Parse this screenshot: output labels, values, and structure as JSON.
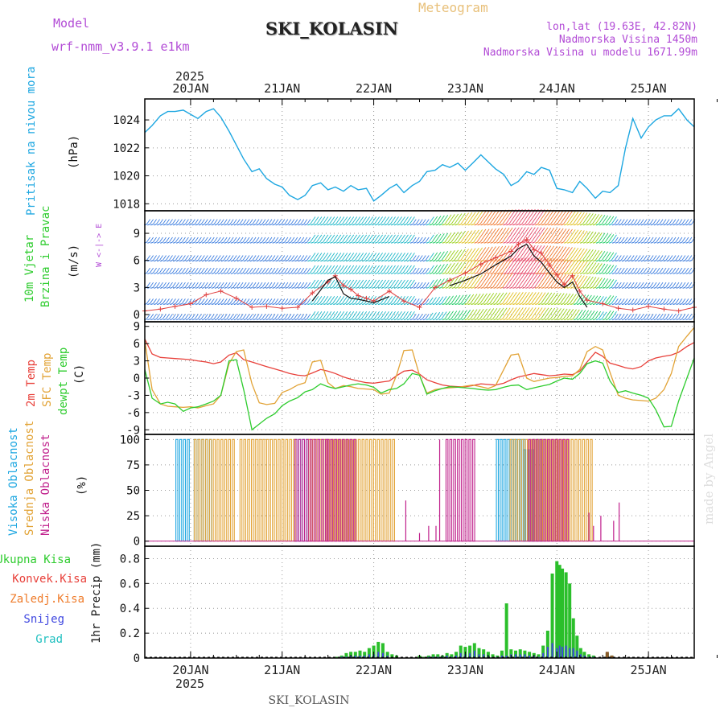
{
  "header": {
    "model_label": "Model",
    "model_name": "wrf-nmm_v3.9.1 e1km",
    "station": "SKI_KOLASIN",
    "product": "Meteogram",
    "lonlat": "lon,lat (19.63E, 42.82N)",
    "elevation": "Nadmorska Visina 1450m",
    "model_elevation": "Nadmorska Visina u modelu 1671.99m",
    "year_top": "2025",
    "year_bottom": "2025",
    "footer_station": "SKI_KOLASIN",
    "credit": "made by Angel"
  },
  "colors": {
    "pressure": "#1ea7e1",
    "temp2m": "#e8403a",
    "sfc": "#e2a336",
    "dewpt": "#2ecc2e",
    "purple": "#b24bd6",
    "gust": "#e04040",
    "precip_total": "#2bbf2b",
    "high_cloud": "#1ea7e1",
    "mid_cloud": "#e2a336",
    "low_cloud": "#c0208c"
  },
  "chart_data": [
    {
      "type": "line",
      "panel": "pressure",
      "ylabel_1": "Pritisak na nivou mora",
      "ylabel_2": "(hPa)",
      "x_ticks": [
        "20JAN",
        "21JAN",
        "22JAN",
        "23JAN",
        "24JAN",
        "25JAN"
      ],
      "ylim": [
        1017.5,
        1025.5
      ],
      "yticks": [
        1018,
        1020,
        1022,
        1024
      ],
      "grid": true,
      "x": [
        19.5,
        19.58,
        19.67,
        19.75,
        19.83,
        19.92,
        20.0,
        20.08,
        20.17,
        20.25,
        20.33,
        20.42,
        20.5,
        20.58,
        20.67,
        20.75,
        20.83,
        20.92,
        21.0,
        21.08,
        21.17,
        21.25,
        21.33,
        21.42,
        21.5,
        21.58,
        21.67,
        21.75,
        21.83,
        21.92,
        22.0,
        22.08,
        22.17,
        22.25,
        22.33,
        22.42,
        22.5,
        22.58,
        22.67,
        22.75,
        22.83,
        22.92,
        23.0,
        23.08,
        23.17,
        23.25,
        23.33,
        23.42,
        23.5,
        23.58,
        23.67,
        23.75,
        23.83,
        23.92,
        24.0,
        24.08,
        24.17,
        24.25,
        24.33,
        24.42,
        24.5,
        24.58,
        24.67,
        24.75,
        24.83,
        24.92,
        25.0,
        25.08,
        25.17,
        25.25,
        25.33,
        25.42,
        25.5
      ],
      "series": [
        {
          "key": "pressure",
          "values": [
            1023.1,
            1023.6,
            1024.3,
            1024.6,
            1024.6,
            1024.7,
            1024.4,
            1024.1,
            1024.6,
            1024.8,
            1024.2,
            1023.2,
            1022.2,
            1021.2,
            1020.3,
            1020.5,
            1019.8,
            1019.4,
            1019.2,
            1018.6,
            1018.3,
            1018.6,
            1019.3,
            1019.5,
            1019.0,
            1019.2,
            1018.9,
            1019.3,
            1019.0,
            1019.1,
            1018.2,
            1018.6,
            1019.1,
            1019.4,
            1018.8,
            1019.3,
            1019.6,
            1020.3,
            1020.4,
            1020.8,
            1020.6,
            1020.9,
            1020.4,
            1020.9,
            1021.5,
            1021.0,
            1020.5,
            1020.1,
            1019.3,
            1019.6,
            1020.3,
            1020.1,
            1020.6,
            1020.4,
            1019.1,
            1019.0,
            1018.8,
            1019.6,
            1019.1,
            1018.4,
            1018.9,
            1018.8,
            1019.3,
            1022.0,
            1024.1,
            1022.7,
            1023.5,
            1024.0,
            1024.3,
            1024.3,
            1024.8,
            1024.0,
            1023.5
          ]
        }
      ]
    },
    {
      "type": "line",
      "panel": "wind",
      "ylabel_1": "10m Vjetar",
      "ylabel_2": "Brzina i Pravac",
      "ylabel_3": "(m/s)",
      "compass": "W <-|-> E",
      "ylim": [
        -0.8,
        11.5
      ],
      "yticks": [
        0,
        3,
        6,
        9
      ],
      "x": [
        19.5,
        19.67,
        19.83,
        20.0,
        20.17,
        20.33,
        20.5,
        20.67,
        20.83,
        21.0,
        21.17,
        21.33,
        21.5,
        21.58,
        21.67,
        21.75,
        21.83,
        21.92,
        22.0,
        22.17,
        22.33,
        22.5,
        22.67,
        22.83,
        23.0,
        23.17,
        23.33,
        23.5,
        23.58,
        23.67,
        23.75,
        23.83,
        23.92,
        24.0,
        24.08,
        24.17,
        24.25,
        24.33,
        24.5,
        24.67,
        24.83,
        25.0,
        25.17,
        25.33,
        25.5
      ],
      "series": [
        {
          "key": "speed",
          "values": [
            null,
            null,
            null,
            null,
            null,
            null,
            null,
            null,
            null,
            null,
            null,
            1.5,
            3.8,
            4.2,
            2.3,
            1.8,
            1.7,
            1.5,
            1.3,
            2.0,
            null,
            null,
            null,
            3.2,
            3.8,
            4.5,
            5.5,
            6.5,
            7.3,
            7.8,
            6.5,
            5.8,
            4.6,
            3.6,
            3.0,
            3.6,
            2.0,
            0.8,
            null,
            null,
            null,
            null,
            null,
            null,
            null
          ]
        },
        {
          "key": "gust",
          "values": [
            0.4,
            0.6,
            0.9,
            1.2,
            2.2,
            2.6,
            1.8,
            0.8,
            0.9,
            0.7,
            0.8,
            2.4,
            3.6,
            4.3,
            3.2,
            2.8,
            2.1,
            1.8,
            1.5,
            2.6,
            1.5,
            0.8,
            3.0,
            3.8,
            4.6,
            5.6,
            6.3,
            7.0,
            7.8,
            8.3,
            7.2,
            6.8,
            5.5,
            4.4,
            3.3,
            4.3,
            2.6,
            1.6,
            1.2,
            0.7,
            0.5,
            0.9,
            0.6,
            0.4,
            0.8
          ]
        }
      ]
    },
    {
      "type": "line",
      "panel": "temperature",
      "legend": [
        "2m Temp",
        "SFC Temp",
        "dewpt Temp"
      ],
      "ylabel_unit": "(C)",
      "ylim": [
        -9.8,
        9.8
      ],
      "yticks": [
        -9,
        -6,
        -3,
        0,
        3,
        6,
        9
      ],
      "x": [
        19.5,
        19.58,
        19.67,
        19.75,
        19.83,
        19.92,
        20.0,
        20.08,
        20.17,
        20.25,
        20.33,
        20.42,
        20.5,
        20.58,
        20.67,
        20.75,
        20.83,
        20.92,
        21.0,
        21.08,
        21.17,
        21.25,
        21.33,
        21.42,
        21.5,
        21.58,
        21.67,
        21.75,
        21.83,
        21.92,
        22.0,
        22.08,
        22.17,
        22.25,
        22.33,
        22.42,
        22.5,
        22.58,
        22.67,
        22.75,
        22.83,
        22.92,
        23.0,
        23.08,
        23.17,
        23.25,
        23.33,
        23.42,
        23.5,
        23.58,
        23.67,
        23.75,
        23.83,
        23.92,
        24.0,
        24.08,
        24.17,
        24.25,
        24.33,
        24.42,
        24.5,
        24.58,
        24.67,
        24.75,
        24.83,
        24.92,
        25.0,
        25.08,
        25.17,
        25.25,
        25.33,
        25.42,
        25.5
      ],
      "series": [
        {
          "key": "temp2m",
          "values": [
            6.8,
            4.2,
            3.6,
            3.5,
            3.4,
            3.3,
            3.2,
            3.0,
            2.8,
            2.5,
            2.8,
            4.0,
            4.4,
            3.2,
            2.8,
            2.4,
            2.0,
            1.6,
            1.2,
            0.8,
            0.5,
            0.4,
            0.9,
            1.5,
            1.2,
            0.8,
            0.2,
            -0.2,
            -0.5,
            -0.8,
            -0.9,
            -0.7,
            -0.5,
            0.4,
            1.2,
            1.4,
            0.7,
            -0.3,
            -0.8,
            -1.2,
            -1.4,
            -1.5,
            -1.5,
            -1.3,
            -1.0,
            -1.1,
            -1.2,
            -0.9,
            -0.3,
            0.2,
            0.5,
            0.8,
            0.6,
            0.4,
            0.5,
            0.7,
            0.6,
            1.2,
            2.8,
            4.5,
            3.8,
            2.6,
            2.2,
            1.8,
            1.6,
            2.0,
            3.0,
            3.5,
            3.8,
            4.0,
            4.5,
            5.5,
            6.2
          ]
        },
        {
          "key": "sfc",
          "values": [
            6.5,
            -2.0,
            -4.5,
            -4.9,
            -5.0,
            -5.1,
            -5.0,
            -5.2,
            -4.8,
            -4.5,
            -3.0,
            2.5,
            4.6,
            4.9,
            -1.0,
            -4.3,
            -4.6,
            -4.4,
            -2.5,
            -2.0,
            -1.2,
            -0.8,
            2.8,
            3.1,
            -0.8,
            -1.8,
            -1.3,
            -1.5,
            -1.8,
            -1.9,
            -2.0,
            -2.8,
            -2.6,
            0.5,
            4.8,
            4.9,
            0.5,
            -2.6,
            -2.0,
            -1.8,
            -1.7,
            -1.6,
            -1.4,
            -1.2,
            -1.5,
            -1.8,
            -1.3,
            1.5,
            4.0,
            4.2,
            0.0,
            -0.6,
            -0.3,
            0.0,
            0.1,
            0.3,
            0.4,
            1.5,
            4.6,
            5.5,
            4.9,
            1.0,
            -3.0,
            -3.5,
            -3.8,
            -3.9,
            -4.0,
            -3.5,
            -2.0,
            0.8,
            5.5,
            7.3,
            8.8
          ]
        },
        {
          "key": "dewpt",
          "values": [
            1.5,
            -3.5,
            -4.5,
            -4.2,
            -4.5,
            -5.8,
            -5.2,
            -5.0,
            -4.5,
            -4.0,
            -3.0,
            3.0,
            3.2,
            -2.0,
            -9.0,
            -8.0,
            -7.0,
            -6.2,
            -4.8,
            -4.0,
            -3.4,
            -2.4,
            -2.0,
            -1.0,
            -1.5,
            -1.8,
            -1.5,
            -1.2,
            -1.0,
            -1.2,
            -1.6,
            -2.6,
            -2.0,
            -1.8,
            -1.0,
            0.8,
            0.5,
            -2.8,
            -2.2,
            -1.8,
            -1.5,
            -1.6,
            -1.7,
            -1.8,
            -2.0,
            -2.1,
            -2.0,
            -1.6,
            -1.3,
            -1.2,
            -2.0,
            -1.7,
            -1.4,
            -1.1,
            -0.5,
            0.0,
            -0.2,
            0.8,
            2.5,
            3.0,
            2.6,
            -0.5,
            -2.5,
            -2.2,
            -2.6,
            -3.0,
            -3.5,
            -5.5,
            -8.5,
            -8.4,
            -4.0,
            0.0,
            3.5
          ]
        }
      ]
    },
    {
      "type": "bar",
      "panel": "cloud",
      "legend": [
        "Visoka Oblacnost",
        "Srednja Oblacnost",
        "Niska Oblacnost"
      ],
      "ylabel_unit": "(%)",
      "ylim": [
        -5,
        105
      ],
      "yticks": [
        0,
        25,
        50,
        75,
        100
      ],
      "series": [
        {
          "key": "high_cloud",
          "segments": [
            [
              19.85,
              20.0,
              100
            ],
            [
              20.05,
              20.25,
              100
            ],
            [
              21.15,
              21.3,
              100
            ],
            [
              23.35,
              23.65,
              100
            ],
            [
              23.65,
              23.75,
              90
            ],
            [
              23.75,
              23.85,
              100
            ]
          ]
        },
        {
          "key": "mid_cloud",
          "segments": [
            [
              20.05,
              20.5,
              100
            ],
            [
              20.55,
              21.15,
              100
            ],
            [
              21.3,
              22.25,
              100
            ],
            [
              23.5,
              24.4,
              100
            ]
          ]
        },
        {
          "key": "low_cloud",
          "segments": [
            [
              21.15,
              21.5,
              100
            ],
            [
              21.5,
              21.8,
              100
            ],
            [
              22.8,
              23.1,
              100
            ],
            [
              23.7,
              24.15,
              100
            ]
          ]
        },
        {
          "key": "low_cloud_sparse",
          "x": [
            22.35,
            22.5,
            22.6,
            22.68,
            22.72,
            24.35,
            24.4,
            24.48,
            24.62,
            24.68
          ],
          "values": [
            40,
            8,
            15,
            15,
            100,
            28,
            15,
            25,
            20,
            38
          ]
        }
      ]
    },
    {
      "type": "bar",
      "panel": "precipitation",
      "legend": [
        "Ukupna Kisa",
        "Konvek.Kisa",
        "Zaledj.Kisa",
        "Snijeg",
        "Grad"
      ],
      "ylabel": "1hr Precip (mm)",
      "ylim": [
        0,
        0.9
      ],
      "yticks": [
        0,
        0.2,
        0.4,
        0.6,
        0.8
      ],
      "x": [
        21.6,
        21.65,
        21.7,
        21.75,
        21.8,
        21.85,
        21.9,
        21.95,
        22.0,
        22.05,
        22.1,
        22.15,
        22.2,
        22.25,
        22.5,
        22.55,
        22.6,
        22.65,
        22.7,
        22.75,
        22.8,
        22.85,
        22.9,
        22.95,
        23.0,
        23.05,
        23.1,
        23.15,
        23.2,
        23.25,
        23.3,
        23.35,
        23.4,
        23.45,
        23.5,
        23.55,
        23.6,
        23.65,
        23.7,
        23.75,
        23.8,
        23.85,
        23.9,
        23.95,
        24.0,
        24.03,
        24.06,
        24.1,
        24.14,
        24.18,
        24.22,
        24.26,
        24.3,
        24.35,
        24.4,
        24.55,
        24.6
      ],
      "series": [
        {
          "key": "total",
          "values": [
            0.01,
            0.02,
            0.04,
            0.05,
            0.05,
            0.06,
            0.05,
            0.08,
            0.1,
            0.13,
            0.12,
            0.05,
            0.03,
            0.02,
            0.02,
            0.01,
            0.02,
            0.03,
            0.03,
            0.02,
            0.04,
            0.03,
            0.05,
            0.1,
            0.09,
            0.1,
            0.12,
            0.08,
            0.07,
            0.05,
            0.03,
            0.02,
            0.06,
            0.44,
            0.07,
            0.06,
            0.07,
            0.06,
            0.05,
            0.04,
            0.03,
            0.1,
            0.22,
            0.68,
            0.78,
            0.75,
            0.72,
            0.69,
            0.6,
            0.32,
            0.18,
            0.08,
            0.05,
            0.03,
            0.02,
            0.04,
            0.02
          ]
        },
        {
          "key": "snow",
          "values": [
            0,
            0.01,
            0.01,
            0.02,
            0.02,
            0.02,
            0.02,
            0.03,
            0.03,
            0.05,
            0.04,
            0.02,
            0.01,
            0.0,
            0,
            0,
            0.01,
            0.01,
            0.01,
            0.01,
            0.02,
            0.01,
            0.02,
            0.04,
            0.03,
            0.04,
            0.06,
            0.03,
            0.03,
            0.02,
            0.01,
            0.01,
            0.02,
            0.02,
            0.03,
            0.03,
            0.03,
            0.03,
            0.02,
            0.02,
            0.01,
            0.04,
            0.09,
            0.12,
            0.08,
            0.1,
            0.09,
            0.1,
            0.08,
            0.08,
            0.06,
            0.03,
            0.02,
            0.01,
            0.01,
            0.0,
            0.0
          ]
        },
        {
          "key": "frozen",
          "values": [
            0,
            0,
            0,
            0,
            0,
            0,
            0,
            0,
            0,
            0,
            0,
            0,
            0,
            0,
            0,
            0,
            0,
            0,
            0,
            0,
            0,
            0,
            0,
            0,
            0,
            0,
            0,
            0,
            0,
            0,
            0,
            0,
            0,
            0,
            0,
            0,
            0,
            0,
            0,
            0,
            0,
            0,
            0,
            0,
            0,
            0,
            0,
            0,
            0,
            0,
            0,
            0,
            0,
            0,
            0,
            0.05,
            0.02
          ]
        }
      ]
    }
  ]
}
